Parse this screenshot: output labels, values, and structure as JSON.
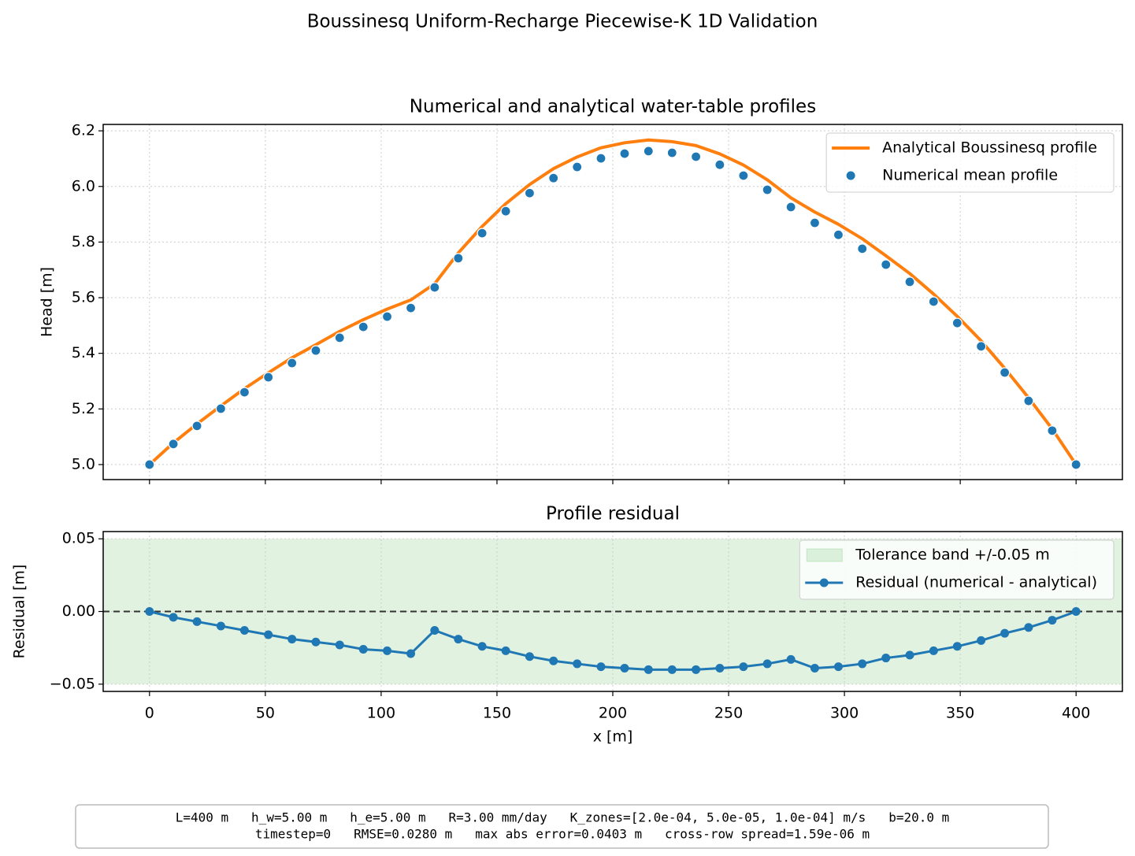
{
  "title": "Boussinesq Uniform-Recharge Piecewise-K 1D Validation",
  "note": [
    "L=400 m   h_w=5.00 m   h_e=5.00 m   R=3.00 mm/day   K_zones=[2.0e-04, 5.0e-05, 1.0e-04] m/s   b=20.0 m",
    "timestep=0   RMSE=0.0280 m   max abs error=0.0403 m   cross-row spread=1.59e-06 m"
  ],
  "chart_data": [
    {
      "type": "line",
      "title": "Numerical and analytical water-table profiles",
      "ylabel": "Head [m]",
      "x": [
        0,
        10.3,
        20.5,
        30.8,
        41.0,
        51.3,
        61.5,
        71.8,
        82.1,
        92.3,
        102.6,
        112.8,
        123.1,
        133.3,
        143.6,
        153.8,
        164.1,
        174.4,
        184.6,
        194.9,
        205.1,
        215.4,
        225.6,
        235.9,
        246.2,
        256.4,
        266.7,
        276.9,
        287.2,
        297.4,
        307.7,
        317.9,
        328.2,
        338.5,
        348.7,
        359.0,
        369.2,
        379.5,
        389.7,
        400
      ],
      "series": [
        {
          "name": "Analytical Boussinesq profile",
          "type": "line",
          "color": "#ff7f0e",
          "values": [
            5.0,
            5.078,
            5.146,
            5.211,
            5.273,
            5.33,
            5.384,
            5.431,
            5.479,
            5.521,
            5.559,
            5.592,
            5.65,
            5.761,
            5.856,
            5.938,
            6.007,
            6.064,
            6.106,
            6.139,
            6.157,
            6.167,
            6.161,
            6.147,
            6.117,
            6.077,
            6.024,
            5.959,
            5.908,
            5.864,
            5.812,
            5.751,
            5.687,
            5.613,
            5.533,
            5.445,
            5.346,
            5.24,
            5.128,
            5.0
          ]
        },
        {
          "name": "Numerical mean profile",
          "type": "scatter",
          "color": "#1f77b4",
          "values": [
            5.0,
            5.074,
            5.139,
            5.201,
            5.26,
            5.314,
            5.365,
            5.41,
            5.456,
            5.495,
            5.532,
            5.563,
            5.637,
            5.742,
            5.832,
            5.911,
            5.976,
            6.03,
            6.07,
            6.101,
            6.118,
            6.127,
            6.121,
            6.107,
            6.078,
            6.039,
            5.988,
            5.926,
            5.869,
            5.826,
            5.776,
            5.719,
            5.657,
            5.586,
            5.509,
            5.425,
            5.331,
            5.229,
            5.122,
            5.0
          ]
        }
      ],
      "xlim": [
        -20,
        420
      ],
      "ylim": [
        4.946,
        6.223
      ],
      "xticks": [
        0,
        50,
        100,
        150,
        200,
        250,
        300,
        350,
        400
      ],
      "yticks": [
        {
          "value": 5,
          "label": "5.0"
        },
        5.2,
        5.4,
        5.6,
        5.8,
        {
          "value": 6,
          "label": "6.0"
        },
        6.2
      ],
      "grid": true,
      "legend": "upper right"
    },
    {
      "type": "line",
      "title": "Profile residual",
      "xlabel": "x [m]",
      "ylabel": "Residual [m]",
      "x": [
        0,
        10.3,
        20.5,
        30.8,
        41.0,
        51.3,
        61.5,
        71.8,
        82.1,
        92.3,
        102.6,
        112.8,
        123.1,
        133.3,
        143.6,
        153.8,
        164.1,
        174.4,
        184.6,
        194.9,
        205.1,
        215.4,
        225.6,
        235.9,
        246.2,
        256.4,
        266.7,
        276.9,
        287.2,
        297.4,
        307.7,
        317.9,
        328.2,
        338.5,
        348.7,
        359.0,
        369.2,
        379.5,
        389.7,
        400
      ],
      "tolerance": {
        "name": "Tolerance band +/-0.05 m",
        "value": 0.05,
        "color": "#2ca02c"
      },
      "reference_line": 0,
      "series": [
        {
          "name": "Residual (numerical - analytical)",
          "type": "line",
          "marker": true,
          "color": "#1f77b4",
          "values": [
            0,
            -0.004,
            -0.007,
            -0.01,
            -0.013,
            -0.016,
            -0.019,
            -0.021,
            -0.023,
            -0.026,
            -0.027,
            -0.029,
            -0.013,
            -0.019,
            -0.024,
            -0.027,
            -0.031,
            -0.034,
            -0.036,
            -0.038,
            -0.039,
            -0.04,
            -0.04,
            -0.04,
            -0.039,
            -0.038,
            -0.036,
            -0.033,
            -0.039,
            -0.038,
            -0.036,
            -0.032,
            -0.03,
            -0.027,
            -0.024,
            -0.02,
            -0.015,
            -0.011,
            -0.006,
            0
          ]
        }
      ],
      "xlim": [
        -20,
        420
      ],
      "ylim": [
        -0.055,
        0.055
      ],
      "xticks": [
        0,
        50,
        100,
        150,
        200,
        250,
        300,
        350,
        400
      ],
      "yticks": [
        {
          "value": -0.05,
          "label": "−0.05"
        },
        {
          "value": 0,
          "label": "0.00"
        },
        {
          "value": 0.05,
          "label": "0.05"
        }
      ],
      "grid": true,
      "legend": "upper right"
    }
  ]
}
